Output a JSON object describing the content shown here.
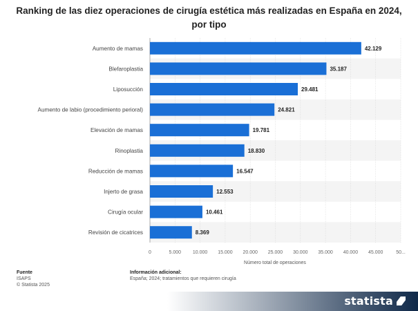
{
  "header": {
    "title": "Ranking de las diez operaciones de cirugía estética más realizadas en España en 2024, por tipo"
  },
  "chart_data": {
    "type": "bar",
    "orientation": "horizontal",
    "categories": [
      "Aumento de mamas",
      "Blefaroplastia",
      "Liposucción",
      "Aumento de labio (procedimiento perioral)",
      "Elevación de mamas",
      "Rinoplastia",
      "Reducción de mamas",
      "Injerto de grasa",
      "Cirugía ocular",
      "Revisión de cicatrices"
    ],
    "values": [
      42129,
      35187,
      29481,
      24821,
      19781,
      18830,
      16547,
      12553,
      10461,
      8369
    ],
    "value_labels": [
      "42.129",
      "35.187",
      "29.481",
      "24.821",
      "19.781",
      "18.830",
      "16.547",
      "12.553",
      "10.461",
      "8.369"
    ],
    "xlim": [
      0,
      50000
    ],
    "ticks": [
      0,
      5000,
      10000,
      15000,
      20000,
      25000,
      30000,
      35000,
      40000,
      45000,
      50000
    ],
    "tick_labels": [
      "0",
      "5.000",
      "10.000",
      "15.000",
      "20.000",
      "25.000",
      "30.000",
      "35.000",
      "40.000",
      "45.000",
      "50..."
    ],
    "xlabel": "Número total de operaciones",
    "bar_color": "#1a6fd6",
    "alt_row_color": "#f4f4f4",
    "grid": true
  },
  "footer": {
    "source_heading": "Fuente",
    "source_name": "ISAPS",
    "copyright": "© Statista 2025",
    "info_heading": "Información adicional:",
    "info_text": "España; 2024; tratamientos que requieren cirugía"
  },
  "brand": {
    "logo_text": "statista"
  }
}
